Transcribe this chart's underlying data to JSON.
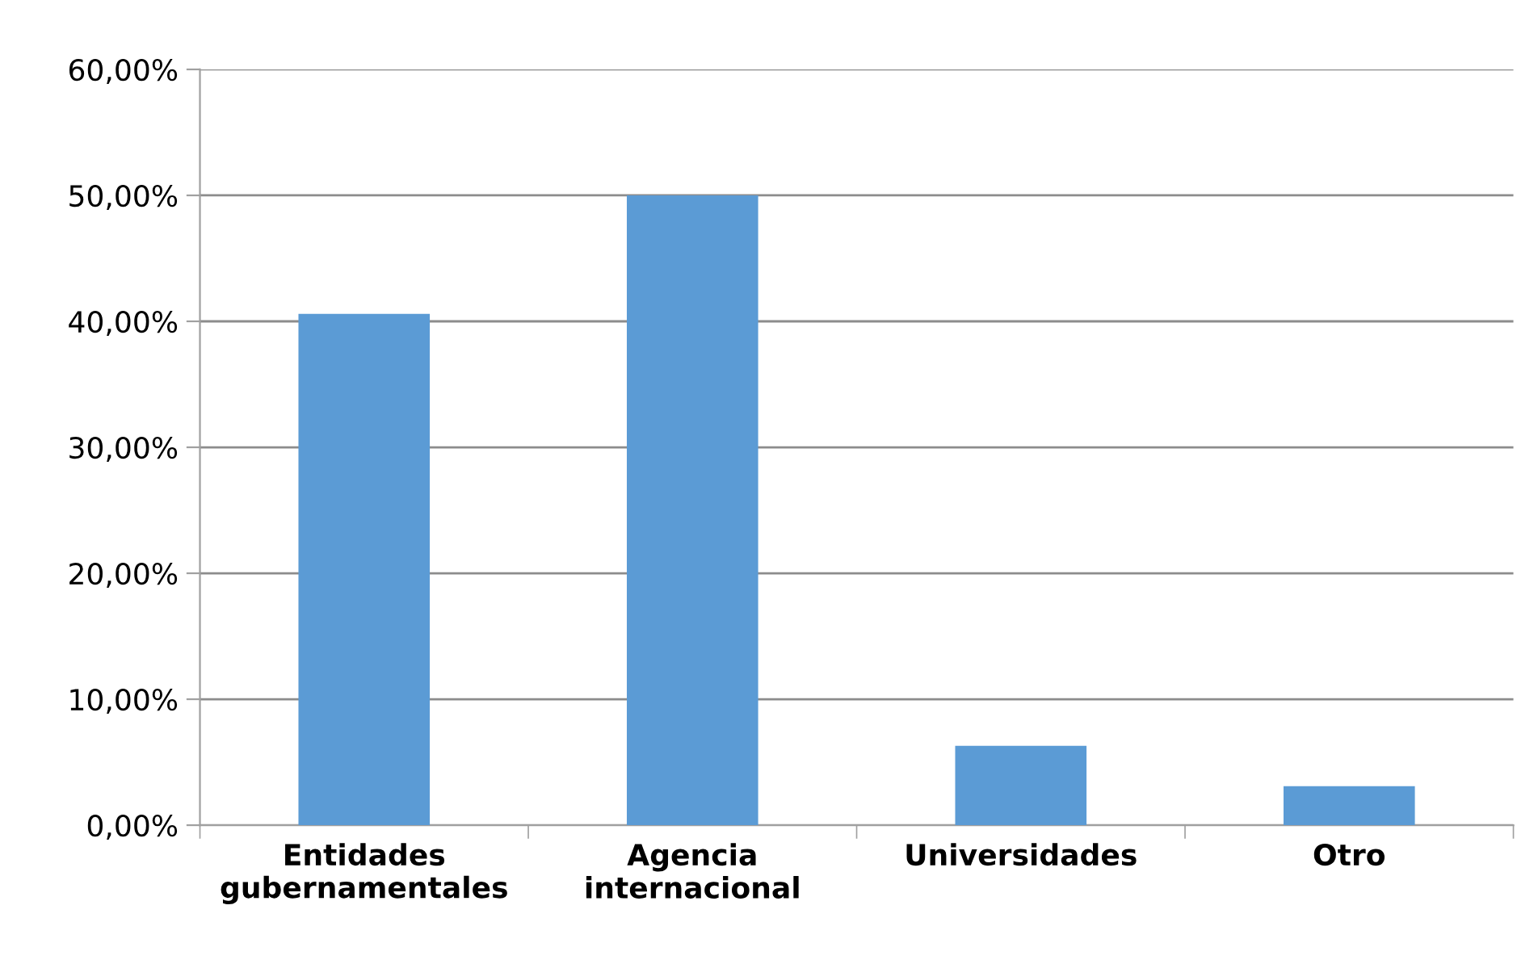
{
  "chart_data": {
    "type": "bar",
    "categories": [
      "Entidades\ngubernamentales",
      "Agencia\ninternacional",
      "Universidades",
      "Otro"
    ],
    "values": [
      40.6,
      50,
      6.3,
      3.1
    ],
    "color": "#5b9bd5",
    "ylim": [
      0,
      60
    ],
    "yticks": [
      {
        "value": 0,
        "label": "0,00%"
      },
      {
        "value": 10,
        "label": "10,00%"
      },
      {
        "value": 20,
        "label": "20,00%"
      },
      {
        "value": 30,
        "label": "30,00%"
      },
      {
        "value": 40,
        "label": "40,00%"
      },
      {
        "value": 50,
        "label": "50,00%"
      },
      {
        "value": 60,
        "label": "60,00%"
      }
    ],
    "grid": "y",
    "legend": false
  }
}
